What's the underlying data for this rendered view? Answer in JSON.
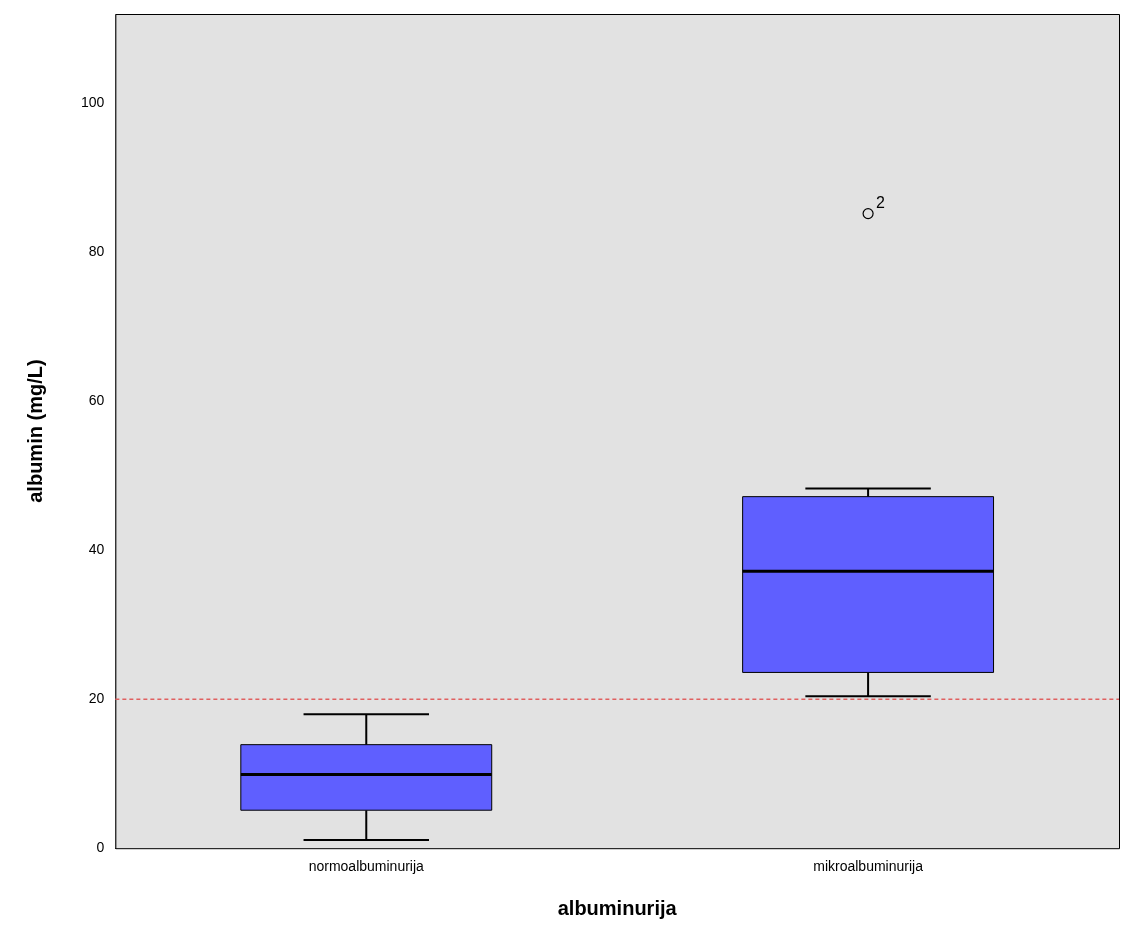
{
  "chart_data": {
    "type": "box",
    "xlabel": "albuminurija",
    "ylabel": "albumin (mg/L)",
    "categories": [
      "normoalbuminurija",
      "mikroalbuminurija"
    ],
    "boxes": [
      {
        "low": 1.1,
        "q1": 5.1,
        "median": 9.9,
        "q3": 13.9,
        "high": 18.0
      },
      {
        "low": 20.4,
        "q1": 23.6,
        "median": 37.2,
        "q3": 47.2,
        "high": 48.3,
        "outliers": [
          85.2
        ]
      }
    ],
    "color": "#5f5fff",
    "ylim": [
      0,
      112
    ],
    "yticks": [
      0,
      20,
      40,
      60,
      80,
      100
    ],
    "grid": false,
    "legend": false,
    "ref_lines": [
      {
        "axis": "y",
        "value": 20,
        "color": "#e06060",
        "line_style": "dashed"
      }
    ],
    "annotations": [
      "2"
    ]
  }
}
